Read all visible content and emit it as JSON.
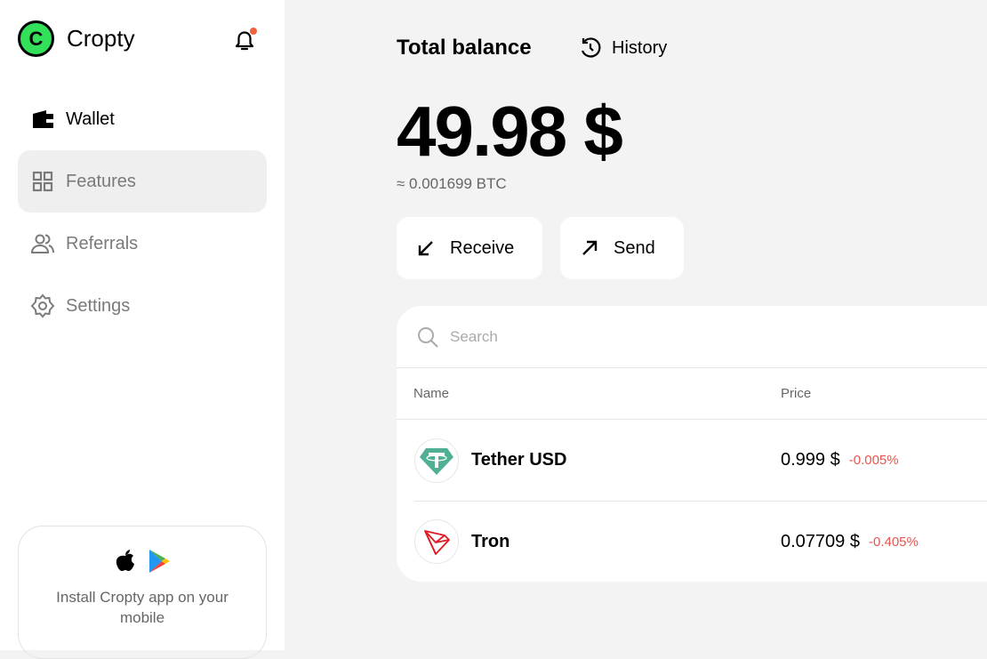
{
  "app": {
    "name": "Cropty",
    "logo_letter": "C",
    "notification_dot_color": "#f0623e"
  },
  "sidebar": {
    "items": [
      {
        "label": "Wallet",
        "icon": "wallet-icon"
      },
      {
        "label": "Features",
        "icon": "grid-icon"
      },
      {
        "label": "Referrals",
        "icon": "users-icon"
      },
      {
        "label": "Settings",
        "icon": "gear-icon"
      }
    ],
    "promo": {
      "text": "Install Cropty app on your mobile",
      "icons": [
        "apple-icon",
        "google-play-icon"
      ]
    }
  },
  "main": {
    "title": "Total balance",
    "history_label": "History",
    "balance": "49.98 $",
    "btc_equiv": "≈ 0.001699 BTC",
    "receive_label": "Receive",
    "send_label": "Send",
    "search": {
      "placeholder": "Search",
      "value": ""
    },
    "columns": [
      "Name",
      "Price"
    ],
    "assets": [
      {
        "name": "Tether USD",
        "price": "0.999 $",
        "change": "-0.005%",
        "icon": "tether-icon",
        "color": "#50af95"
      },
      {
        "name": "Tron",
        "price": "0.07709 $",
        "change": "-0.405%",
        "icon": "tron-icon",
        "color": "#e01b22"
      }
    ],
    "negative_color": "#e8554e"
  }
}
